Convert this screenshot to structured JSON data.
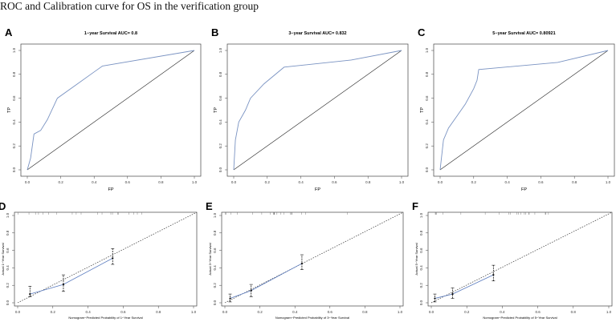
{
  "title": "ROC and Calibration curve for OS in the verification group",
  "colors": {
    "roc": "#7a93c2",
    "diag": "#222222",
    "calib": "#5a7bbf"
  },
  "chart_data": [
    {
      "type": "line",
      "panel": "A",
      "title": "1−year Survival AUC= 0.8",
      "xlabel": "FP",
      "ylabel": "TP",
      "xlim": [
        0,
        1
      ],
      "ylim": [
        0,
        1
      ],
      "ticks": [
        "0.0",
        "0.2",
        "0.4",
        "0.6",
        "0.8",
        "1.0"
      ],
      "x": [
        0,
        0.02,
        0.04,
        0.08,
        0.12,
        0.18,
        0.3,
        0.4,
        0.45,
        1
      ],
      "y": [
        0,
        0.1,
        0.3,
        0.33,
        0.42,
        0.6,
        0.72,
        0.82,
        0.87,
        1
      ]
    },
    {
      "type": "line",
      "panel": "B",
      "title": "3−year Survival AUC= 0.832",
      "xlabel": "FP",
      "ylabel": "TP",
      "xlim": [
        0,
        1
      ],
      "ylim": [
        0,
        1
      ],
      "ticks": [
        "0.0",
        "0.2",
        "0.4",
        "0.6",
        "0.8",
        "1.0"
      ],
      "x": [
        0,
        0.01,
        0.03,
        0.07,
        0.1,
        0.18,
        0.3,
        0.7,
        1
      ],
      "y": [
        0,
        0.25,
        0.4,
        0.5,
        0.6,
        0.72,
        0.86,
        0.92,
        1
      ]
    },
    {
      "type": "line",
      "panel": "C",
      "title": "5−year Survival AUC= 0.80921",
      "xlabel": "FP",
      "ylabel": "TP",
      "xlim": [
        0,
        1
      ],
      "ylim": [
        0,
        1
      ],
      "ticks": [
        "0.0",
        "0.2",
        "0.4",
        "0.6",
        "0.8",
        "1.0"
      ],
      "x": [
        0,
        0.02,
        0.05,
        0.1,
        0.15,
        0.2,
        0.22,
        0.23,
        0.7,
        1
      ],
      "y": [
        0,
        0.25,
        0.35,
        0.45,
        0.55,
        0.68,
        0.75,
        0.84,
        0.9,
        1
      ]
    },
    {
      "type": "scatter",
      "panel": "D",
      "xlabel": "Nomogram−Predicted Probability of 1−Year Survival",
      "ylabel": "Actual 1−Year Survival",
      "xlim": [
        0,
        1
      ],
      "ylim": [
        0,
        1
      ],
      "ticks": [
        "0.0",
        "0.2",
        "0.4",
        "0.6",
        "0.8",
        "1.0"
      ],
      "x": [
        0.07,
        0.26,
        0.54
      ],
      "y": [
        0.1,
        0.21,
        0.51
      ],
      "lo": [
        0.07,
        0.13,
        0.44
      ],
      "hi": [
        0.19,
        0.32,
        0.62
      ]
    },
    {
      "type": "scatter",
      "panel": "E",
      "xlabel": "Nomogram−Predicted Probability of 3−Year Survival",
      "ylabel": "Actual 3−Year Survival",
      "xlim": [
        0,
        1
      ],
      "ylim": [
        0,
        1
      ],
      "ticks": [
        "0.0",
        "0.2",
        "0.4",
        "0.6",
        "0.8",
        "1.0"
      ],
      "x": [
        0.03,
        0.15,
        0.44
      ],
      "y": [
        0.05,
        0.14,
        0.45
      ],
      "lo": [
        0.01,
        0.07,
        0.38
      ],
      "hi": [
        0.1,
        0.21,
        0.55
      ]
    },
    {
      "type": "scatter",
      "panel": "F",
      "xlabel": "Nomogram−Predicted Probability of 5−Year Survival",
      "ylabel": "Actual 5−Year Survival",
      "xlim": [
        0,
        1
      ],
      "ylim": [
        0,
        1
      ],
      "ticks": [
        "0.0",
        "0.2",
        "0.4",
        "0.6",
        "0.8",
        "1.0"
      ],
      "x": [
        0.02,
        0.12,
        0.35
      ],
      "y": [
        0.05,
        0.1,
        0.32
      ],
      "lo": [
        0.01,
        0.05,
        0.25
      ],
      "hi": [
        0.1,
        0.17,
        0.43
      ]
    }
  ]
}
